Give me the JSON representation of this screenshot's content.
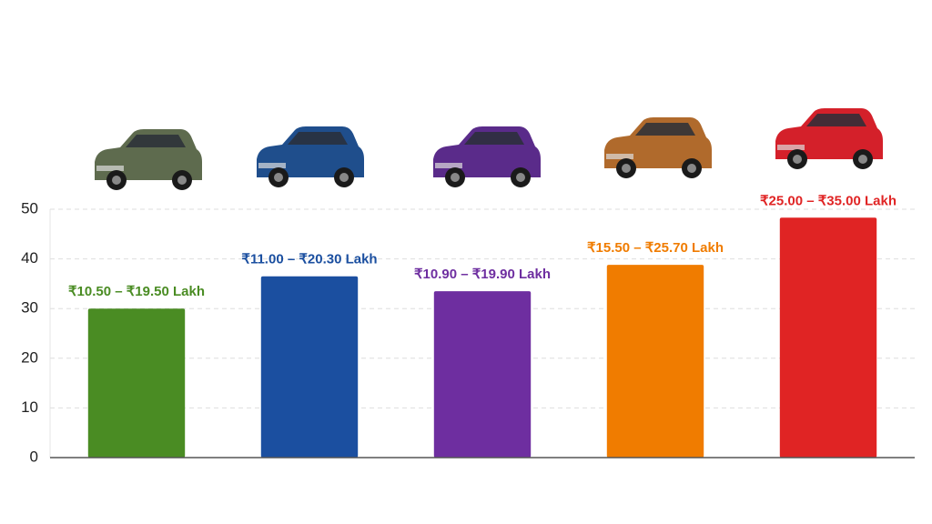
{
  "chart_data": {
    "type": "bar",
    "categories": [
      "₹10.50 – ₹19.50 Lakh",
      "₹11.00 – ₹20.30 Lakh",
      "₹10.90 – ₹19.90 Lakh",
      "₹15.50 – ₹25.70 Lakh",
      "₹25.00 – ₹35.00 Lakh"
    ],
    "values": [
      30,
      36.5,
      33.5,
      38.8,
      48.3
    ],
    "colors": [
      "#4a8c23",
      "#1b4fa0",
      "#6e2ea0",
      "#f07c00",
      "#e02424"
    ],
    "ylim": [
      0,
      50
    ],
    "yticks": [
      0,
      10,
      20,
      30,
      40,
      50
    ],
    "grid": true
  }
}
